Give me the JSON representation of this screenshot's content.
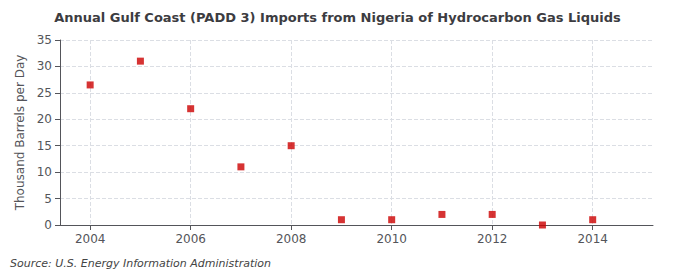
{
  "chart_data": {
    "type": "scatter",
    "title": "Annual Gulf Coast (PADD 3) Imports from Nigeria of Hydrocarbon Gas Liquids",
    "ylabel": "Thousand Barrels per Day",
    "annotation": "Source: U.S. Energy Information Administration",
    "x": [
      2004,
      2005,
      2006,
      2007,
      2008,
      2009,
      2010,
      2011,
      2012,
      2013,
      2014
    ],
    "values": [
      26.5,
      31,
      22,
      11,
      15,
      1,
      1,
      2,
      2,
      0,
      1
    ],
    "color": "#cc0000",
    "marker": "square",
    "xlim": [
      2003.4,
      2015.2
    ],
    "xticks": [
      2004,
      2006,
      2008,
      2010,
      2012,
      2014
    ],
    "ylim": [
      0,
      35
    ],
    "yticks": [
      0,
      5,
      10,
      15,
      20,
      25,
      30,
      35
    ],
    "grid": true
  }
}
